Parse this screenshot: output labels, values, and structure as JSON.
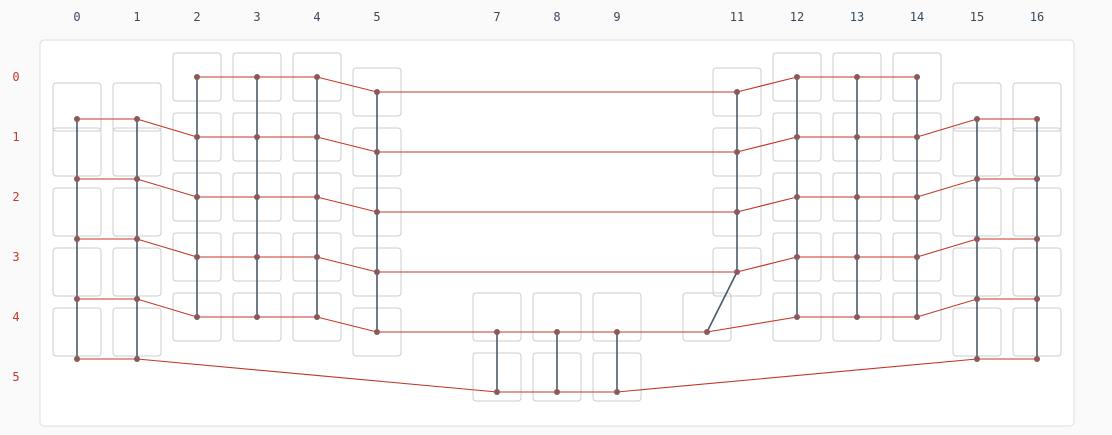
{
  "columns": [
    "0",
    "1",
    "2",
    "3",
    "4",
    "5",
    "7",
    "8",
    "9",
    "11",
    "12",
    "13",
    "14",
    "15",
    "16"
  ],
  "rows": [
    "0",
    "1",
    "2",
    "3",
    "4",
    "5"
  ],
  "colors": {
    "row_edge": "#c0392b",
    "col_edge": "#4a5a6a",
    "node": "#8a5a5a",
    "key_border": "#cccccc",
    "panel_border": "#dddddd"
  },
  "keys": [
    {
      "col": "0",
      "units": [
        1.0,
        1.75,
        2.75,
        3.75,
        4.75
      ]
    },
    {
      "col": "1",
      "units": [
        1.0,
        1.75,
        2.75,
        3.75,
        4.75
      ]
    },
    {
      "col": "2",
      "units": [
        0.5,
        1.5,
        2.5,
        3.5,
        4.5
      ]
    },
    {
      "col": "3",
      "units": [
        0.5,
        1.5,
        2.5,
        3.5,
        4.5
      ]
    },
    {
      "col": "4",
      "units": [
        0.5,
        1.5,
        2.5,
        3.5,
        4.5
      ]
    },
    {
      "col": "5",
      "units": [
        0.75,
        1.75,
        2.75,
        3.75,
        4.75
      ]
    },
    {
      "col": "7",
      "units": [
        4.5,
        5.5
      ]
    },
    {
      "col": "8",
      "units": [
        4.5,
        5.5
      ]
    },
    {
      "col": "9",
      "units": [
        4.5,
        5.5
      ]
    },
    {
      "col": "11",
      "units": [
        4.5
      ]
    },
    {
      "col": "11b",
      "units": [
        0.75,
        1.75,
        2.75,
        3.75
      ]
    },
    {
      "col": "12",
      "units": [
        0.5,
        1.5,
        2.5,
        3.5,
        4.5
      ]
    },
    {
      "col": "13",
      "units": [
        0.5,
        1.5,
        2.5,
        3.5,
        4.5
      ]
    },
    {
      "col": "14",
      "units": [
        0.5,
        1.5,
        2.5,
        3.5,
        4.5
      ]
    },
    {
      "col": "15",
      "units": [
        1.0,
        1.75,
        2.75,
        3.75,
        4.75
      ]
    },
    {
      "col": "16",
      "units": [
        1.0,
        1.75,
        2.75,
        3.75,
        4.75
      ]
    }
  ],
  "nodes": [
    {
      "id": "r0c2",
      "col": "2",
      "row": "0"
    },
    {
      "id": "r0c3",
      "col": "3",
      "row": "0"
    },
    {
      "id": "r0c4",
      "col": "4",
      "row": "0"
    },
    {
      "id": "r0c5",
      "col": "5",
      "row": "0"
    },
    {
      "id": "r0c11",
      "col": "11",
      "row": "0"
    },
    {
      "id": "r0c12",
      "col": "12",
      "row": "0"
    },
    {
      "id": "r0c13",
      "col": "13",
      "row": "0"
    },
    {
      "id": "r0c14",
      "col": "14",
      "row": "0"
    },
    {
      "id": "r1c0",
      "col": "0",
      "row": "1"
    },
    {
      "id": "r1c1",
      "col": "1",
      "row": "1"
    },
    {
      "id": "r1c2",
      "col": "2",
      "row": "1"
    },
    {
      "id": "r1c3",
      "col": "3",
      "row": "1"
    },
    {
      "id": "r1c4",
      "col": "4",
      "row": "1"
    },
    {
      "id": "r1c5",
      "col": "5",
      "row": "1"
    },
    {
      "id": "r1c11",
      "col": "11",
      "row": "1"
    },
    {
      "id": "r1c12",
      "col": "12",
      "row": "1"
    },
    {
      "id": "r1c13",
      "col": "13",
      "row": "1"
    },
    {
      "id": "r1c14",
      "col": "14",
      "row": "1"
    },
    {
      "id": "r1c15",
      "col": "15",
      "row": "1"
    },
    {
      "id": "r1c16",
      "col": "16",
      "row": "1"
    },
    {
      "id": "r2c0",
      "col": "0",
      "row": "2"
    },
    {
      "id": "r2c1",
      "col": "1",
      "row": "2"
    },
    {
      "id": "r2c2",
      "col": "2",
      "row": "2"
    },
    {
      "id": "r2c3",
      "col": "3",
      "row": "2"
    },
    {
      "id": "r2c4",
      "col": "4",
      "row": "2"
    },
    {
      "id": "r2c5",
      "col": "5",
      "row": "2"
    },
    {
      "id": "r2c11",
      "col": "11",
      "row": "2"
    },
    {
      "id": "r2c12",
      "col": "12",
      "row": "2"
    },
    {
      "id": "r2c13",
      "col": "13",
      "row": "2"
    },
    {
      "id": "r2c14",
      "col": "14",
      "row": "2"
    },
    {
      "id": "r2c15",
      "col": "15",
      "row": "2"
    },
    {
      "id": "r2c16",
      "col": "16",
      "row": "2"
    },
    {
      "id": "r3c0",
      "col": "0",
      "row": "3"
    },
    {
      "id": "r3c1",
      "col": "1",
      "row": "3"
    },
    {
      "id": "r3c2",
      "col": "2",
      "row": "3"
    },
    {
      "id": "r3c3",
      "col": "3",
      "row": "3"
    },
    {
      "id": "r3c4",
      "col": "4",
      "row": "3"
    },
    {
      "id": "r3c5",
      "col": "5",
      "row": "3"
    },
    {
      "id": "r3c11",
      "col": "11",
      "row": "3"
    },
    {
      "id": "r3c12",
      "col": "12",
      "row": "3"
    },
    {
      "id": "r3c13",
      "col": "13",
      "row": "3"
    },
    {
      "id": "r3c14",
      "col": "14",
      "row": "3"
    },
    {
      "id": "r3c15",
      "col": "15",
      "row": "3"
    },
    {
      "id": "r3c16",
      "col": "16",
      "row": "3"
    },
    {
      "id": "r4c0",
      "col": "0",
      "row": "4"
    },
    {
      "id": "r4c1",
      "col": "1",
      "row": "4"
    },
    {
      "id": "r4c2",
      "col": "2",
      "row": "4"
    },
    {
      "id": "r4c3",
      "col": "3",
      "row": "4"
    },
    {
      "id": "r4c4",
      "col": "4",
      "row": "4"
    },
    {
      "id": "r4c5",
      "col": "5",
      "row": "4"
    },
    {
      "id": "r4c7",
      "col": "7",
      "row": "4"
    },
    {
      "id": "r4c8",
      "col": "8",
      "row": "4"
    },
    {
      "id": "r4c9",
      "col": "9",
      "row": "4"
    },
    {
      "id": "r4c10",
      "col": "10",
      "row": "4"
    },
    {
      "id": "r4c12",
      "col": "12",
      "row": "4"
    },
    {
      "id": "r4c13",
      "col": "13",
      "row": "4"
    },
    {
      "id": "r4c14",
      "col": "14",
      "row": "4"
    },
    {
      "id": "r4c15",
      "col": "15",
      "row": "4"
    },
    {
      "id": "r4c16",
      "col": "16",
      "row": "4"
    },
    {
      "id": "r5c0",
      "col": "0",
      "row": "5"
    },
    {
      "id": "r5c1",
      "col": "1",
      "row": "5"
    },
    {
      "id": "r5c7",
      "col": "7",
      "row": "5"
    },
    {
      "id": "r5c8",
      "col": "8",
      "row": "5"
    },
    {
      "id": "r5c9",
      "col": "9",
      "row": "5"
    },
    {
      "id": "r5c15",
      "col": "15",
      "row": "5"
    },
    {
      "id": "r5c16",
      "col": "16",
      "row": "5"
    }
  ],
  "row_paths": [
    [
      "r0c2",
      "r0c3",
      "r0c4",
      "r0c5",
      "r0c11",
      "r0c12",
      "r0c13",
      "r0c14"
    ],
    [
      "r1c0",
      "r1c1",
      "r1c2",
      "r1c3",
      "r1c4",
      "r1c5",
      "r1c11",
      "r1c12",
      "r1c13",
      "r1c14",
      "r1c15",
      "r1c16"
    ],
    [
      "r2c0",
      "r2c1",
      "r2c2",
      "r2c3",
      "r2c4",
      "r2c5",
      "r2c11",
      "r2c12",
      "r2c13",
      "r2c14",
      "r2c15",
      "r2c16"
    ],
    [
      "r3c0",
      "r3c1",
      "r3c2",
      "r3c3",
      "r3c4",
      "r3c5",
      "r3c11",
      "r3c12",
      "r3c13",
      "r3c14",
      "r3c15",
      "r3c16"
    ],
    [
      "r4c0",
      "r4c1",
      "r4c2",
      "r4c3",
      "r4c4",
      "r4c5",
      "r4c7",
      "r4c8",
      "r4c9",
      "r4c10",
      "r4c12",
      "r4c13",
      "r4c14",
      "r4c15",
      "r4c16"
    ],
    [
      "r5c0",
      "r5c1",
      "r5c7",
      "r5c8",
      "r5c9",
      "r5c15",
      "r5c16"
    ]
  ],
  "col_paths": [
    [
      "r1c0",
      "r2c0",
      "r3c0",
      "r4c0",
      "r5c0"
    ],
    [
      "r1c1",
      "r2c1",
      "r3c1",
      "r4c1",
      "r5c1"
    ],
    [
      "r0c2",
      "r1c2",
      "r2c2",
      "r3c2",
      "r4c2"
    ],
    [
      "r0c3",
      "r1c3",
      "r2c3",
      "r3c3",
      "r4c3"
    ],
    [
      "r0c4",
      "r1c4",
      "r2c4",
      "r3c4",
      "r4c4"
    ],
    [
      "r0c5",
      "r1c5",
      "r2c5",
      "r3c5",
      "r4c5"
    ],
    [
      "r4c7",
      "r5c7"
    ],
    [
      "r4c8",
      "r5c8"
    ],
    [
      "r4c9",
      "r5c9"
    ],
    [
      "r0c11",
      "r1c11",
      "r2c11",
      "r3c11",
      "r4c10"
    ],
    [
      "r0c12",
      "r1c12",
      "r2c12",
      "r3c12",
      "r4c12"
    ],
    [
      "r0c13",
      "r1c13",
      "r2c13",
      "r3c13",
      "r4c13"
    ],
    [
      "r0c14",
      "r1c14",
      "r2c14",
      "r3c14",
      "r4c14"
    ],
    [
      "r1c15",
      "r2c15",
      "r3c15",
      "r4c15",
      "r5c15"
    ],
    [
      "r1c16",
      "r2c16",
      "r3c16",
      "r4c16",
      "r5c16"
    ]
  ]
}
